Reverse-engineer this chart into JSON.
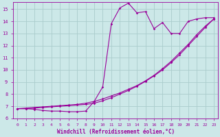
{
  "background_color": "#cce8e8",
  "grid_color": "#aacccc",
  "line_color": "#990099",
  "xlabel": "Windchill (Refroidissement éolien,°C)",
  "xlim": [
    -0.5,
    23.5
  ],
  "ylim": [
    6.0,
    15.6
  ],
  "yticks": [
    6,
    7,
    8,
    9,
    10,
    11,
    12,
    13,
    14,
    15
  ],
  "xticks": [
    0,
    1,
    2,
    3,
    4,
    5,
    6,
    7,
    8,
    9,
    10,
    11,
    12,
    13,
    14,
    15,
    16,
    17,
    18,
    19,
    20,
    21,
    22,
    23
  ],
  "curve1_x": [
    0,
    1,
    2,
    3,
    4,
    5,
    6,
    7,
    8,
    9,
    10,
    11,
    12,
    13,
    14,
    15,
    16,
    17,
    18,
    19,
    20,
    21,
    22,
    23
  ],
  "curve1_y": [
    6.8,
    6.8,
    6.75,
    6.65,
    6.6,
    6.6,
    6.55,
    6.55,
    6.6,
    7.4,
    8.6,
    13.8,
    15.1,
    15.5,
    14.7,
    14.8,
    13.4,
    13.9,
    13.0,
    13.0,
    14.0,
    14.2,
    14.3,
    14.3
  ],
  "curve2_x": [
    0,
    1,
    2,
    3,
    4,
    5,
    6,
    7,
    8,
    9,
    10,
    11,
    12,
    13,
    14,
    15,
    16,
    17,
    18,
    19,
    20,
    21,
    22,
    23
  ],
  "curve2_y": [
    6.8,
    6.85,
    6.9,
    6.95,
    7.0,
    7.05,
    7.1,
    7.15,
    7.25,
    7.4,
    7.6,
    7.85,
    8.1,
    8.4,
    8.7,
    9.1,
    9.55,
    10.1,
    10.7,
    11.4,
    12.1,
    12.9,
    13.6,
    14.2
  ],
  "curve3_x": [
    0,
    1,
    2,
    3,
    4,
    5,
    6,
    7,
    8,
    9,
    10,
    11,
    12,
    13,
    14,
    15,
    16,
    17,
    18,
    19,
    20,
    21,
    22,
    23
  ],
  "curve3_y": [
    6.8,
    6.8,
    6.85,
    6.9,
    6.95,
    7.0,
    7.05,
    7.1,
    7.15,
    7.25,
    7.45,
    7.7,
    8.0,
    8.3,
    8.65,
    9.05,
    9.5,
    10.0,
    10.6,
    11.25,
    12.0,
    12.75,
    13.5,
    14.2
  ]
}
